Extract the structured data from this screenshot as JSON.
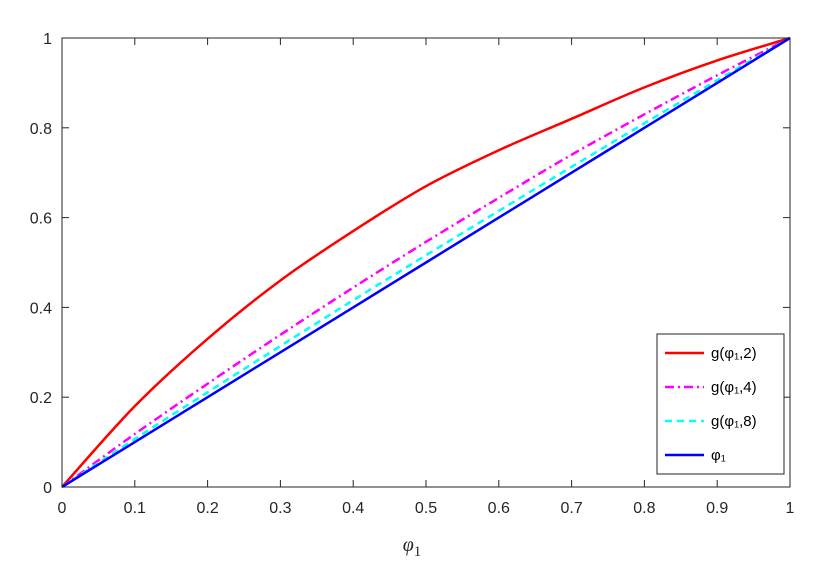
{
  "chart_data": {
    "type": "line",
    "xlabel": "φ₁",
    "ylabel": "",
    "xlim": [
      0,
      1
    ],
    "ylim": [
      0,
      1
    ],
    "xticks": [
      0,
      0.1,
      0.2,
      0.3,
      0.4,
      0.5,
      0.6,
      0.7,
      0.8,
      0.9,
      1
    ],
    "xtick_labels": [
      "0",
      "0.1",
      "0.2",
      "0.3",
      "0.4",
      "0.5",
      "0.6",
      "0.7",
      "0.8",
      "0.9",
      "1"
    ],
    "yticks": [
      0,
      0.2,
      0.4,
      0.6,
      0.8,
      1
    ],
    "ytick_labels": [
      "0",
      "0.2",
      "0.4",
      "0.6",
      "0.8",
      "1"
    ],
    "grid": false,
    "legend_position": "bottom-right",
    "x": [
      0,
      0.1,
      0.2,
      0.3,
      0.4,
      0.5,
      0.6,
      0.7,
      0.8,
      0.9,
      1
    ],
    "series": [
      {
        "name": "g(φ₁,2)",
        "color": "#ff0000",
        "dash": "solid",
        "values": [
          0,
          0.18,
          0.33,
          0.46,
          0.57,
          0.67,
          0.75,
          0.82,
          0.89,
          0.95,
          1
        ]
      },
      {
        "name": "g(φ₁,4)",
        "color": "#ff00ff",
        "dash": "dashdot",
        "values": [
          0,
          0.118,
          0.23,
          0.339,
          0.444,
          0.546,
          0.644,
          0.74,
          0.83,
          0.917,
          1
        ]
      },
      {
        "name": "g(φ₁,8)",
        "color": "#00ffff",
        "dash": "dashed",
        "values": [
          0,
          0.107,
          0.211,
          0.314,
          0.416,
          0.516,
          0.615,
          0.713,
          0.81,
          0.906,
          1
        ]
      },
      {
        "name": "φ₁",
        "color": "#0000ff",
        "dash": "solid",
        "values": [
          0,
          0.1,
          0.2,
          0.3,
          0.4,
          0.5,
          0.6,
          0.7,
          0.8,
          0.9,
          1
        ]
      }
    ]
  }
}
